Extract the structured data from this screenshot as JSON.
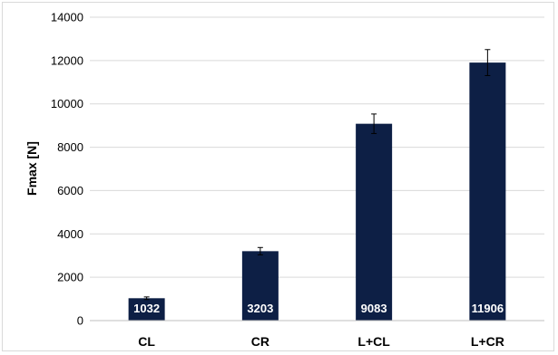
{
  "chart_data": {
    "type": "bar",
    "title": "",
    "xlabel": "",
    "ylabel": "Fmax [N]",
    "ylim": [
      0,
      14000
    ],
    "yticks": [
      0,
      2000,
      4000,
      6000,
      8000,
      10000,
      12000,
      14000
    ],
    "grid": true,
    "categories": [
      "CL",
      "CR",
      "L+CL",
      "L+CR"
    ],
    "values": [
      1032,
      3203,
      9083,
      11906
    ],
    "errors": [
      60,
      170,
      450,
      600
    ],
    "data_labels": [
      "1032",
      "3203",
      "9083",
      "11906"
    ],
    "bar_color": "#0d1f45"
  }
}
